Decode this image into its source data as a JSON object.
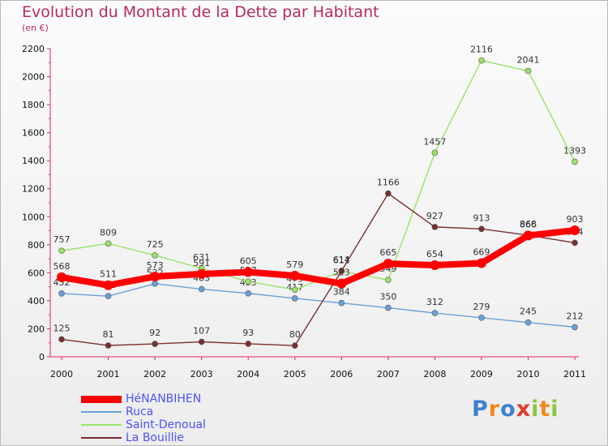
{
  "title": "Evolution du Montant de la Dette par Habitant",
  "subtitle": "(en €)",
  "logo": {
    "p": "P",
    "r": "r",
    "o": "o",
    "x": "x",
    "i1": "i",
    "t": "t",
    "i2": "i"
  },
  "chart_data": {
    "type": "line",
    "title": "Evolution du Montant de la Dette par Habitant",
    "ylabel": "(en €)",
    "xlabel": "",
    "x": [
      "2000",
      "2001",
      "2002",
      "2003",
      "2004",
      "2005",
      "2006",
      "2007",
      "2008",
      "2009",
      "2010",
      "2011"
    ],
    "ylim": [
      0,
      2200
    ],
    "yticks": [
      "0",
      "200",
      "400",
      "600",
      "800",
      "1000",
      "1200",
      "1400",
      "1600",
      "1800",
      "2000",
      "2200"
    ],
    "series": [
      {
        "name": "Ruca",
        "color": "#6aa0d8",
        "values": [
          452,
          433,
          522,
          483,
          453,
          417,
          384,
          350,
          312,
          279,
          245,
          212
        ],
        "labels": [
          "452",
          "433",
          "522",
          "483",
          "453",
          "417",
          "384",
          "350",
          "312",
          "279",
          "245",
          "212"
        ]
      },
      {
        "name": "Saint-Denoual",
        "color": "#9ae36a",
        "values": [
          757,
          809,
          725,
          631,
          537,
          479,
          611,
          549,
          1457,
          2116,
          2041,
          1393
        ],
        "labels": [
          "757",
          "809",
          "725",
          "631",
          "537",
          "479",
          "611",
          "549",
          "1457",
          "2116",
          "2041",
          "1393"
        ]
      },
      {
        "name": "La Bouillie",
        "color": "#7a2f2f",
        "values": [
          125,
          81,
          92,
          107,
          93,
          80,
          614,
          1166,
          927,
          913,
          868,
          814
        ],
        "labels": [
          "125",
          "81",
          "92",
          "107",
          "93",
          "80",
          "614",
          "1166",
          "927",
          "913",
          "868",
          "814"
        ]
      },
      {
        "name": "HéNANBIHEN",
        "color": "#ff0000",
        "values": [
          568,
          511,
          573,
          591,
          605,
          579,
          523,
          665,
          654,
          669,
          866,
          903
        ],
        "labels": [
          "568",
          "511",
          "573",
          "591",
          "605",
          "579",
          "523",
          "665",
          "654",
          "669",
          "866",
          "903"
        ]
      }
    ],
    "legend": [
      "HéNANBIHEN",
      "Ruca",
      "Saint-Denoual",
      "La Bouillie"
    ],
    "legend_position": "bottom-left",
    "grid": false
  }
}
